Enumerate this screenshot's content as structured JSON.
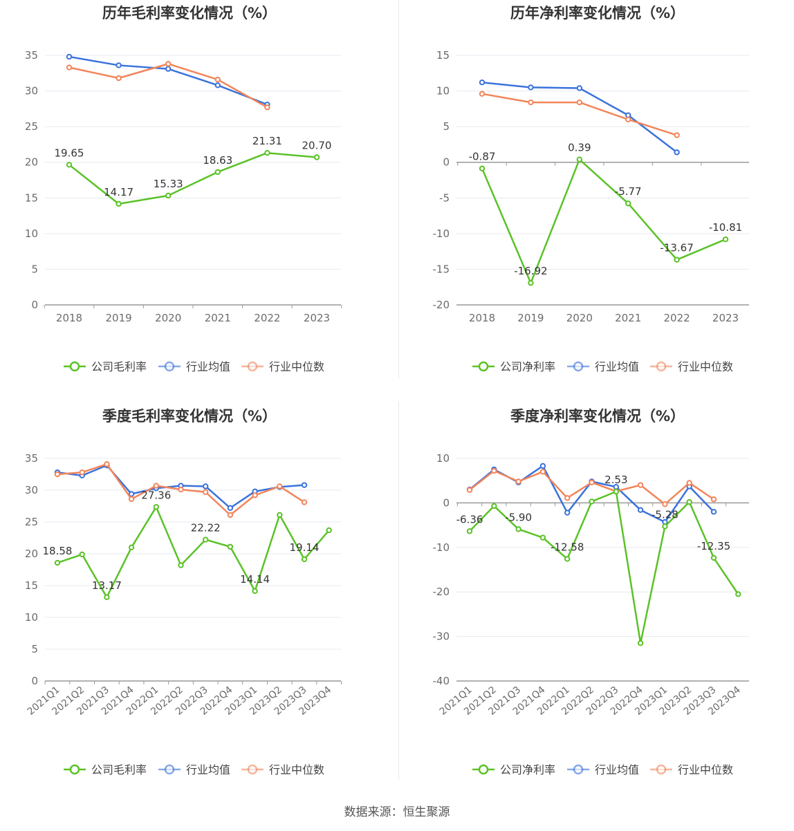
{
  "source_label": "数据来源：恒生聚源",
  "colors": {
    "company": "#5ac227",
    "industry_avg": "#3a72dc",
    "industry_median": "#f2855a",
    "axis": "#999999",
    "grid": "#e6e9f0",
    "tick_text": "#6b6b6b",
    "label_text": "#333333"
  },
  "chart_data": [
    {
      "type": "line",
      "title": "历年毛利率变化情况（%）",
      "categories": [
        "2018",
        "2019",
        "2020",
        "2021",
        "2022",
        "2023"
      ],
      "yticks": [
        0,
        5,
        10,
        15,
        20,
        25,
        30,
        35
      ],
      "ylim": [
        0,
        35
      ],
      "grid": true,
      "legend_position": "bottom",
      "series": [
        {
          "name": "公司毛利率",
          "color_key": "company",
          "values": [
            19.65,
            14.17,
            15.33,
            18.63,
            21.31,
            20.7
          ],
          "labels": [
            "19.65",
            "14.17",
            "15.33",
            "18.63",
            "21.31",
            "20.70"
          ]
        },
        {
          "name": "行业均值",
          "color_key": "industry_avg",
          "values": [
            34.8,
            33.6,
            33.1,
            30.8,
            28.1,
            null
          ]
        },
        {
          "name": "行业中位数",
          "color_key": "industry_median",
          "values": [
            33.3,
            31.8,
            33.8,
            31.6,
            27.7,
            null
          ]
        }
      ]
    },
    {
      "type": "line",
      "title": "历年净利率变化情况（%）",
      "categories": [
        "2018",
        "2019",
        "2020",
        "2021",
        "2022",
        "2023"
      ],
      "yticks": [
        -20,
        -15,
        -10,
        -5,
        0,
        5,
        10,
        15
      ],
      "ylim": [
        -20,
        15
      ],
      "grid": true,
      "legend_position": "bottom",
      "series": [
        {
          "name": "公司净利率",
          "color_key": "company",
          "values": [
            -0.87,
            -16.92,
            0.39,
            -5.77,
            -13.67,
            -10.81
          ],
          "labels": [
            "-0.87",
            "-16.92",
            "0.39",
            "-5.77",
            "-13.67",
            "-10.81"
          ]
        },
        {
          "name": "行业均值",
          "color_key": "industry_avg",
          "values": [
            11.2,
            10.5,
            10.4,
            6.6,
            1.4,
            null
          ]
        },
        {
          "name": "行业中位数",
          "color_key": "industry_median",
          "values": [
            9.6,
            8.4,
            8.4,
            6.0,
            3.8,
            null
          ]
        }
      ]
    },
    {
      "type": "line",
      "title": "季度毛利率变化情况（%）",
      "categories": [
        "2021Q1",
        "2021Q2",
        "2021Q3",
        "2021Q4",
        "2022Q1",
        "2022Q2",
        "2022Q3",
        "2022Q4",
        "2023Q1",
        "2023Q2",
        "2023Q3",
        "2023Q4"
      ],
      "yticks": [
        0,
        5,
        10,
        15,
        20,
        25,
        30,
        35
      ],
      "ylim": [
        0,
        35
      ],
      "grid": true,
      "legend_position": "bottom",
      "series": [
        {
          "name": "公司毛利率",
          "color_key": "company",
          "values": [
            18.58,
            19.9,
            13.17,
            21.0,
            27.36,
            18.2,
            22.22,
            21.1,
            14.14,
            26.1,
            19.14,
            23.7
          ],
          "labels": [
            "18.58",
            "",
            "13.17",
            "",
            "27.36",
            "",
            "22.22",
            "",
            "14.14",
            "",
            "19.14",
            ""
          ]
        },
        {
          "name": "行业均值",
          "color_key": "industry_avg",
          "values": [
            32.8,
            32.3,
            33.9,
            29.4,
            30.3,
            30.7,
            30.6,
            27.2,
            29.8,
            30.5,
            30.8,
            null
          ]
        },
        {
          "name": "行业中位数",
          "color_key": "industry_median",
          "values": [
            32.5,
            32.8,
            34.1,
            28.6,
            30.7,
            30.1,
            29.7,
            26.1,
            29.2,
            30.6,
            28.1,
            null
          ]
        }
      ]
    },
    {
      "type": "line",
      "title": "季度净利率变化情况（%）",
      "categories": [
        "2021Q1",
        "2021Q2",
        "2021Q3",
        "2021Q4",
        "2022Q1",
        "2022Q2",
        "2022Q3",
        "2022Q4",
        "2023Q1",
        "2023Q2",
        "2023Q3",
        "2023Q4"
      ],
      "yticks": [
        -40,
        -30,
        -20,
        -10,
        0,
        10
      ],
      "ylim": [
        -40,
        10
      ],
      "grid": true,
      "legend_position": "bottom",
      "series": [
        {
          "name": "公司净利率",
          "color_key": "company",
          "values": [
            -6.36,
            -0.7,
            -5.9,
            -7.8,
            -12.58,
            0.3,
            2.53,
            -31.5,
            -5.28,
            0.2,
            -12.35,
            -20.5
          ],
          "labels": [
            "-6.36",
            "",
            "-5.90",
            "",
            "-12.58",
            "",
            "2.53",
            "",
            "-5.28",
            "",
            "-12.35",
            ""
          ]
        },
        {
          "name": "行业均值",
          "color_key": "industry_avg",
          "values": [
            3.0,
            7.5,
            4.6,
            8.3,
            -2.2,
            4.8,
            3.6,
            -1.6,
            -4.3,
            3.7,
            -2.0,
            null
          ]
        },
        {
          "name": "行业中位数",
          "color_key": "industry_median",
          "values": [
            2.9,
            7.2,
            4.8,
            7.0,
            1.1,
            4.6,
            2.6,
            4.0,
            -0.3,
            4.5,
            0.8,
            null
          ]
        }
      ]
    }
  ]
}
